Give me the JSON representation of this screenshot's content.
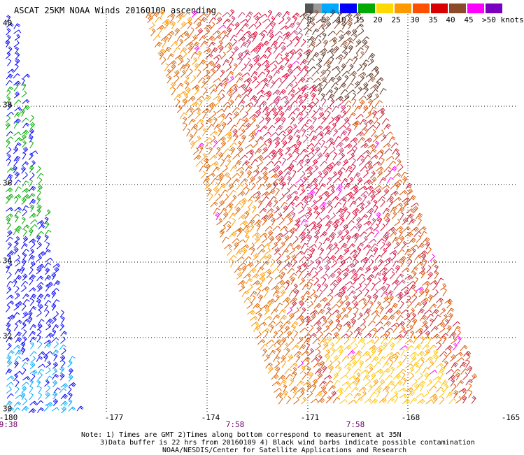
{
  "title": "ASCAT 25KM NOAA Winds 20160109 ascending",
  "legend": {
    "swatches": [
      {
        "color": "#555555"
      },
      {
        "color": "#9a9a9a"
      },
      {
        "color": "#00a8ff"
      },
      {
        "color": "#0000ff"
      },
      {
        "color": "#00aa00"
      },
      {
        "color": "#ffd800"
      },
      {
        "color": "#ff9900"
      },
      {
        "color": "#ff5000"
      },
      {
        "color": "#d80000"
      },
      {
        "color": "#8b4a2a"
      },
      {
        "color": "#ff00ff"
      },
      {
        "color": "#7a00c0"
      }
    ],
    "labels": [
      "0",
      "5",
      "10",
      "15",
      "20",
      "25",
      "30",
      "35",
      "40",
      "45"
    ],
    "units": ">50 knots"
  },
  "map": {
    "lat_labels": [
      "40",
      "38",
      "36",
      "34",
      "32",
      "30"
    ],
    "lon_labels": [
      "-180",
      "-177",
      "-174",
      "-171",
      "-168",
      "-165"
    ],
    "times": [
      "9:38",
      "7:58",
      "7:58"
    ],
    "lon_range": [
      -180,
      -164.7
    ],
    "lat_range": [
      30,
      40
    ]
  },
  "notes": [
    "Note: 1) Times are GMT 2)Times along bottom correspond to measurement at 35N",
    "3)Data buffer is 22 hrs from 20160109 4) Black wind barbs indicate possible contamination",
    "NOAA/NESDIS/Center for Satellite Applications and Research"
  ]
}
